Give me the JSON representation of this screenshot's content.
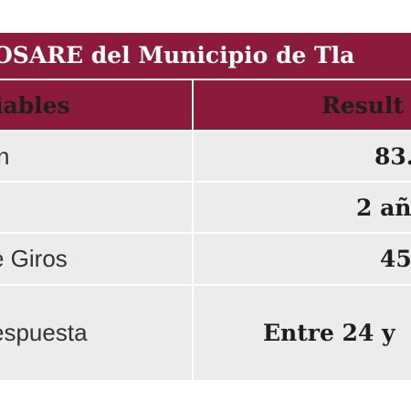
{
  "title": "OSARE del Municipio de Tla",
  "table": {
    "headers": [
      "iables",
      "Result"
    ],
    "rows": [
      {
        "variable": "n",
        "result": "83."
      },
      {
        "variable": "",
        "result": "2 añ"
      },
      {
        "variable": "e Giros",
        "result": "45"
      },
      {
        "variable": "espuesta",
        "result": "Entre 24 y"
      }
    ]
  },
  "colors": {
    "header_bg": "#8b1a3c",
    "row_bg": "#ececec",
    "header_text": "#1e1e1e",
    "title_text": "#ffffff"
  }
}
